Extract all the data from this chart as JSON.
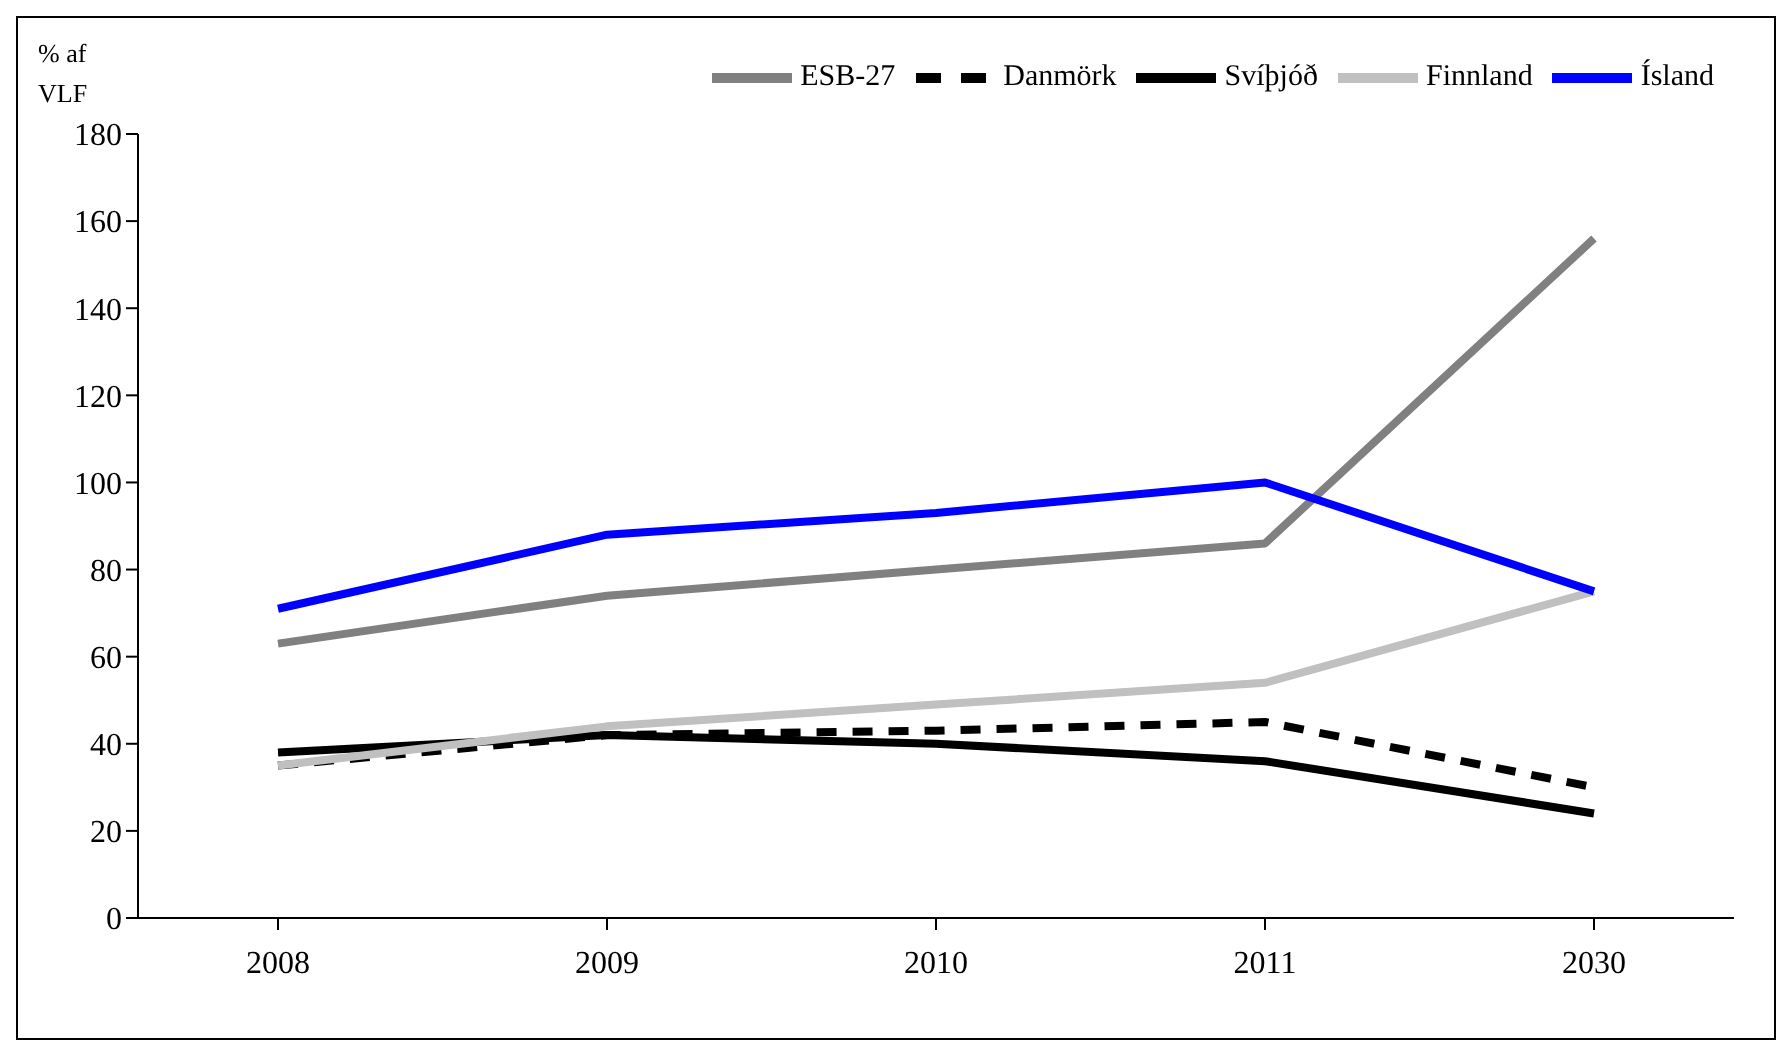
{
  "chart_data": {
    "type": "line",
    "ylabel": "% af VLF",
    "categories": [
      "2008",
      "2009",
      "2010",
      "2011",
      "2030"
    ],
    "series": [
      {
        "name": "ESB-27",
        "color": "#808080",
        "values": [
          63,
          74,
          80,
          86,
          156
        ]
      },
      {
        "name": "Danmörk",
        "color": "#000000",
        "line_style": "dashed",
        "values": [
          35,
          42,
          43,
          45,
          30
        ]
      },
      {
        "name": "Svíþjóð",
        "color": "#000000",
        "values": [
          38,
          42,
          40,
          36,
          24
        ]
      },
      {
        "name": "Finnland",
        "color": "#c0c0c0",
        "values": [
          35,
          44,
          49,
          54,
          75
        ]
      },
      {
        "name": "Ísland",
        "color": "#0000ff",
        "values": [
          71,
          88,
          93,
          100,
          75
        ]
      }
    ],
    "ylim": [
      0,
      180
    ],
    "yticks": [
      0,
      20,
      40,
      60,
      80,
      100,
      120,
      140,
      160,
      180
    ],
    "grid": false,
    "legend": "top",
    "marker": "none",
    "line_style": "solid"
  }
}
